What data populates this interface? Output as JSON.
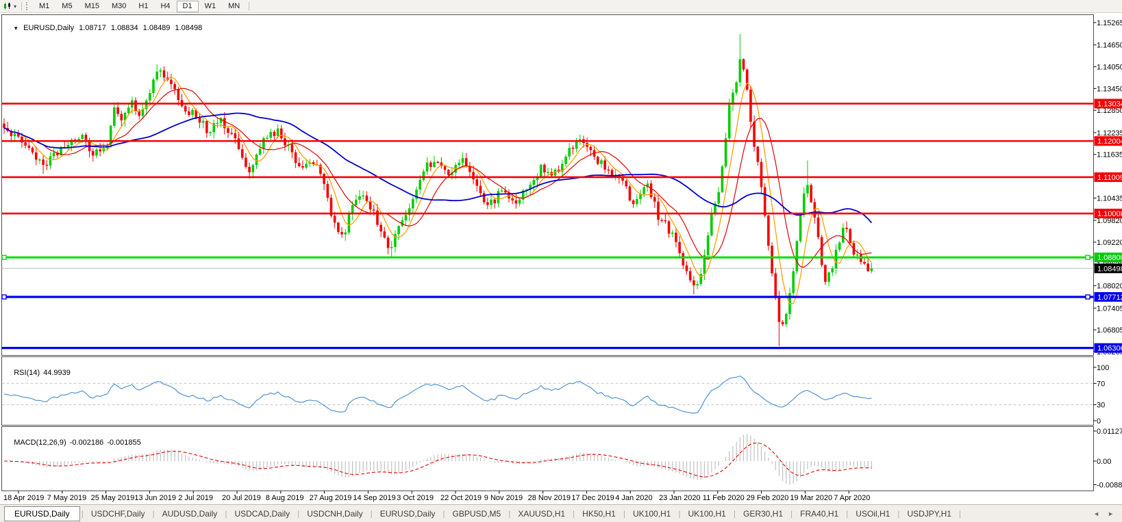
{
  "toolbar": {
    "chart_icon": "candlestick-chart",
    "dropdown_caret": "▾",
    "timeframes": [
      {
        "label": "M1"
      },
      {
        "label": "M5"
      },
      {
        "label": "M15"
      },
      {
        "label": "M30"
      },
      {
        "label": "H1"
      },
      {
        "label": "H4"
      },
      {
        "label": "D1"
      },
      {
        "label": "W1"
      },
      {
        "label": "MN"
      }
    ],
    "active_timeframe": "D1"
  },
  "chart_header": {
    "collapse_icon": "▼",
    "symbol": "EURUSD,Daily",
    "open": "1.08717",
    "high": "1.08834",
    "low": "1.08489",
    "close": "1.08498"
  },
  "price_axis": {
    "ticks": [
      "1.15265",
      "1.14650",
      "1.14050",
      "1.13450",
      "1.12850",
      "1.12235",
      "1.11635",
      "1.10435",
      "1.09820",
      "1.09220",
      "1.08620",
      "1.08020",
      "1.07405",
      "1.06805",
      "1.06205"
    ],
    "tick_values": [
      1.15265,
      1.1465,
      1.1405,
      1.1345,
      1.1285,
      1.12235,
      1.11635,
      1.10435,
      1.0982,
      1.0922,
      1.0862,
      1.0802,
      1.07405,
      1.06805,
      1.06205
    ]
  },
  "levels": [
    {
      "price": 1.13034,
      "label": "1.13034",
      "color": "#f40000",
      "width": 2.6,
      "handles": false
    },
    {
      "price": 1.12004,
      "label": "1.12004",
      "color": "#f40000",
      "width": 2.6,
      "handles": false
    },
    {
      "price": 1.11009,
      "label": "1.11009",
      "color": "#f40000",
      "width": 2.6,
      "handles": false
    },
    {
      "price": 1.10008,
      "label": "1.10008",
      "color": "#f40000",
      "width": 2.6,
      "handles": false
    },
    {
      "price": 1.088,
      "label": "1.08800",
      "color": "#00dd00",
      "width": 3,
      "handles": true
    },
    {
      "price": 1.07712,
      "label": "1.07712",
      "color": "#0000ee",
      "width": 3.2,
      "handles": true
    },
    {
      "price": 1.06306,
      "label": "1.06306",
      "color": "#0000ee",
      "width": 3.2,
      "handles": false
    }
  ],
  "current_price": {
    "value": 1.08498,
    "label": "1.08498",
    "line_color": "#bdbdbd",
    "badge_bg": "#000000",
    "badge_text": "#ffffff"
  },
  "indicators": {
    "rsi": {
      "name": "RSI(14)",
      "value": "44.9939",
      "levels": [
        "100",
        "70",
        "30",
        "0"
      ],
      "level_values": [
        100,
        70,
        30,
        0
      ],
      "dashed_levels": [
        70,
        30
      ],
      "line_color": "#4f93d4"
    },
    "macd": {
      "name": "MACD(12,26,9)",
      "macd_value": "-0.002186",
      "signal_value": "-0.001855",
      "axis_labels": [
        "0.011277",
        "0.00",
        "-0.008845"
      ],
      "axis_values": [
        0.011277,
        0,
        -0.008845
      ],
      "histogram_color": "#c0c0c0",
      "signal_color": "#e60000"
    }
  },
  "date_axis": {
    "labels": [
      "18 Apr 2019",
      "7 May 2019",
      "25 May 2019",
      "13 Jun 2019",
      "2 Jul 2019",
      "20 Jul 2019",
      "8 Aug 2019",
      "27 Aug 2019",
      "14 Sep 2019",
      "3 Oct 2019",
      "22 Oct 2019",
      "9 Nov 2019",
      "28 Nov 2019",
      "17 Dec 2019",
      "4 Jan 2020",
      "23 Jan 2020",
      "11 Feb 2020",
      "29 Feb 2020",
      "19 Mar 2020",
      "7 Apr 2020"
    ]
  },
  "chart_data": {
    "type": "candlestick",
    "symbol": "EURUSD",
    "timeframe": "Daily",
    "price_range": {
      "top": 1.15265,
      "bottom": 1.06205
    },
    "candle_count": 245,
    "up_color": "#00cd00",
    "down_color": "#f50000",
    "close_anchors": [
      [
        0,
        1.1235
      ],
      [
        0.02,
        1.1198
      ],
      [
        0.045,
        1.1128
      ],
      [
        0.07,
        1.1188
      ],
      [
        0.09,
        1.1212
      ],
      [
        0.105,
        1.1162
      ],
      [
        0.118,
        1.1188
      ],
      [
        0.127,
        1.1292
      ],
      [
        0.136,
        1.1248
      ],
      [
        0.146,
        1.1322
      ],
      [
        0.156,
        1.1275
      ],
      [
        0.166,
        1.1332
      ],
      [
        0.178,
        1.1388
      ],
      [
        0.19,
        1.1365
      ],
      [
        0.205,
        1.1288
      ],
      [
        0.22,
        1.1278
      ],
      [
        0.235,
        1.1228
      ],
      [
        0.248,
        1.1268
      ],
      [
        0.262,
        1.1222
      ],
      [
        0.275,
        1.1152
      ],
      [
        0.285,
        1.1118
      ],
      [
        0.3,
        1.1205
      ],
      [
        0.315,
        1.1228
      ],
      [
        0.33,
        1.1172
      ],
      [
        0.345,
        1.1122
      ],
      [
        0.355,
        1.1148
      ],
      [
        0.368,
        1.1092
      ],
      [
        0.378,
        1.0992
      ],
      [
        0.39,
        1.0938
      ],
      [
        0.4,
        1.1002
      ],
      [
        0.412,
        1.1068
      ],
      [
        0.424,
        1.1012
      ],
      [
        0.435,
        1.0942
      ],
      [
        0.445,
        1.0902
      ],
      [
        0.456,
        1.0968
      ],
      [
        0.47,
        1.1042
      ],
      [
        0.485,
        1.1128
      ],
      [
        0.5,
        1.1152
      ],
      [
        0.515,
        1.1108
      ],
      [
        0.53,
        1.1162
      ],
      [
        0.545,
        1.1072
      ],
      [
        0.56,
        1.1022
      ],
      [
        0.575,
        1.1075
      ],
      [
        0.59,
        1.1018
      ],
      [
        0.605,
        1.1082
      ],
      [
        0.62,
        1.1128
      ],
      [
        0.635,
        1.1108
      ],
      [
        0.65,
        1.1172
      ],
      [
        0.665,
        1.1212
      ],
      [
        0.68,
        1.1158
      ],
      [
        0.695,
        1.1122
      ],
      [
        0.71,
        1.1096
      ],
      [
        0.725,
        1.1032
      ],
      [
        0.74,
        1.1092
      ],
      [
        0.755,
        1.0988
      ],
      [
        0.77,
        1.0948
      ],
      [
        0.785,
        1.0842
      ],
      [
        0.795,
        1.0792
      ],
      [
        0.805,
        1.0852
      ],
      [
        0.815,
        1.0988
      ],
      [
        0.825,
        1.1082
      ],
      [
        0.835,
        1.1278
      ],
      [
        0.843,
        1.1358
      ],
      [
        0.85,
        1.1448
      ],
      [
        0.857,
        1.1328
      ],
      [
        0.865,
        1.1188
      ],
      [
        0.872,
        1.1098
      ],
      [
        0.88,
        1.0922
      ],
      [
        0.887,
        1.0802
      ],
      [
        0.895,
        1.0682
      ],
      [
        0.902,
        1.0732
      ],
      [
        0.91,
        1.0852
      ],
      [
        0.917,
        1.0998
      ],
      [
        0.925,
        1.1088
      ],
      [
        0.932,
        1.1028
      ],
      [
        0.94,
        1.0902
      ],
      [
        0.947,
        1.0802
      ],
      [
        0.955,
        1.0862
      ],
      [
        0.963,
        1.0932
      ],
      [
        0.97,
        1.0978
      ],
      [
        0.978,
        1.0902
      ],
      [
        0.985,
        1.0872
      ],
      [
        0.992,
        1.0856
      ],
      [
        1,
        1.08498
      ]
    ],
    "key_points": [
      {
        "f": 0.045,
        "low": 1.111
      },
      {
        "f": 0.178,
        "high": 1.1412
      },
      {
        "f": 0.445,
        "low": 1.0879
      },
      {
        "f": 0.795,
        "low": 1.0778
      },
      {
        "f": 0.85,
        "high": 1.1495
      },
      {
        "f": 0.895,
        "low": 1.0636
      },
      {
        "f": 0.925,
        "high": 1.1147
      }
    ],
    "ma_lines": [
      {
        "name": "fast",
        "period": 6,
        "color": "#ffa000",
        "width": 1.3
      },
      {
        "name": "medium",
        "period": 12,
        "color": "#e00000",
        "width": 1.2
      },
      {
        "name": "slow",
        "period": 40,
        "color": "#0000cc",
        "width": 1.8
      }
    ]
  },
  "bottom_tabs": {
    "tabs": [
      {
        "label": "EURUSD,Daily",
        "active": true
      },
      {
        "label": "USDCHF,Daily",
        "active": false
      },
      {
        "label": "AUDUSD,Daily",
        "active": false
      },
      {
        "label": "USDCAD,Daily",
        "active": false
      },
      {
        "label": "USDCNH,Daily",
        "active": false
      },
      {
        "label": "EURUSD,Daily",
        "active": false
      },
      {
        "label": "GBPUSD,M5",
        "active": false
      },
      {
        "label": "XAUUSD,H1",
        "active": false
      },
      {
        "label": "HK50,H1",
        "active": false
      },
      {
        "label": "UK100,H1",
        "active": false
      },
      {
        "label": "UK100,H1",
        "active": false
      },
      {
        "label": "GER30,H1",
        "active": false
      },
      {
        "label": "FRA40,H1",
        "active": false
      },
      {
        "label": "USOil,H1",
        "active": false
      },
      {
        "label": "USDJPY,H1",
        "active": false
      }
    ],
    "scroll_left_icon": "◄",
    "scroll_right_icon": "►"
  }
}
